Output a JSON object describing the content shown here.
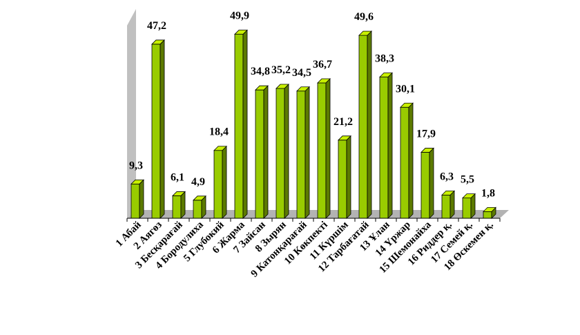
{
  "chart_data": {
    "type": "bar",
    "title": "",
    "xlabel": "",
    "ylabel": "",
    "ylim": [
      0,
      50
    ],
    "grid": false,
    "legend": "none",
    "style": "3d",
    "colors": {
      "bar_front": "#99CC00",
      "bar_side": "#5C7A00",
      "bar_top": "#C8F000",
      "floor": "#B3B3B3",
      "back_wall": "#C0C0C0",
      "axis": "#000000"
    },
    "categories": [
      "1 Абай",
      "2 Аягөз",
      "3 Бесқарағай",
      "4 Бородулиха",
      "5 Глубокий",
      "6 Жарма",
      "7 Зайсан",
      "8 Зырян",
      "9 Катонқарағай",
      "10 Көкпекті",
      "11 Күршім",
      "12 Тарбағатай",
      "13 Ұлан",
      "14 Үржар",
      "15 Шемонайха",
      "16 Риддер қ.",
      "17 Семей қ.",
      "18 Өскемен қ."
    ],
    "values": [
      9.3,
      47.2,
      6.1,
      4.9,
      18.4,
      49.9,
      34.8,
      35.2,
      34.5,
      36.7,
      21.2,
      49.6,
      38.3,
      30.1,
      17.9,
      6.3,
      5.5,
      1.8
    ],
    "value_labels": [
      "9,3",
      "47,2",
      "6,1",
      "4,9",
      "18,4",
      "49,9",
      "34,8",
      "35,2",
      "34,5",
      "36,7",
      "21,2",
      "49,6",
      "38,3",
      "30,1",
      "17,9",
      "6,3",
      "5,5",
      "1,8"
    ]
  }
}
